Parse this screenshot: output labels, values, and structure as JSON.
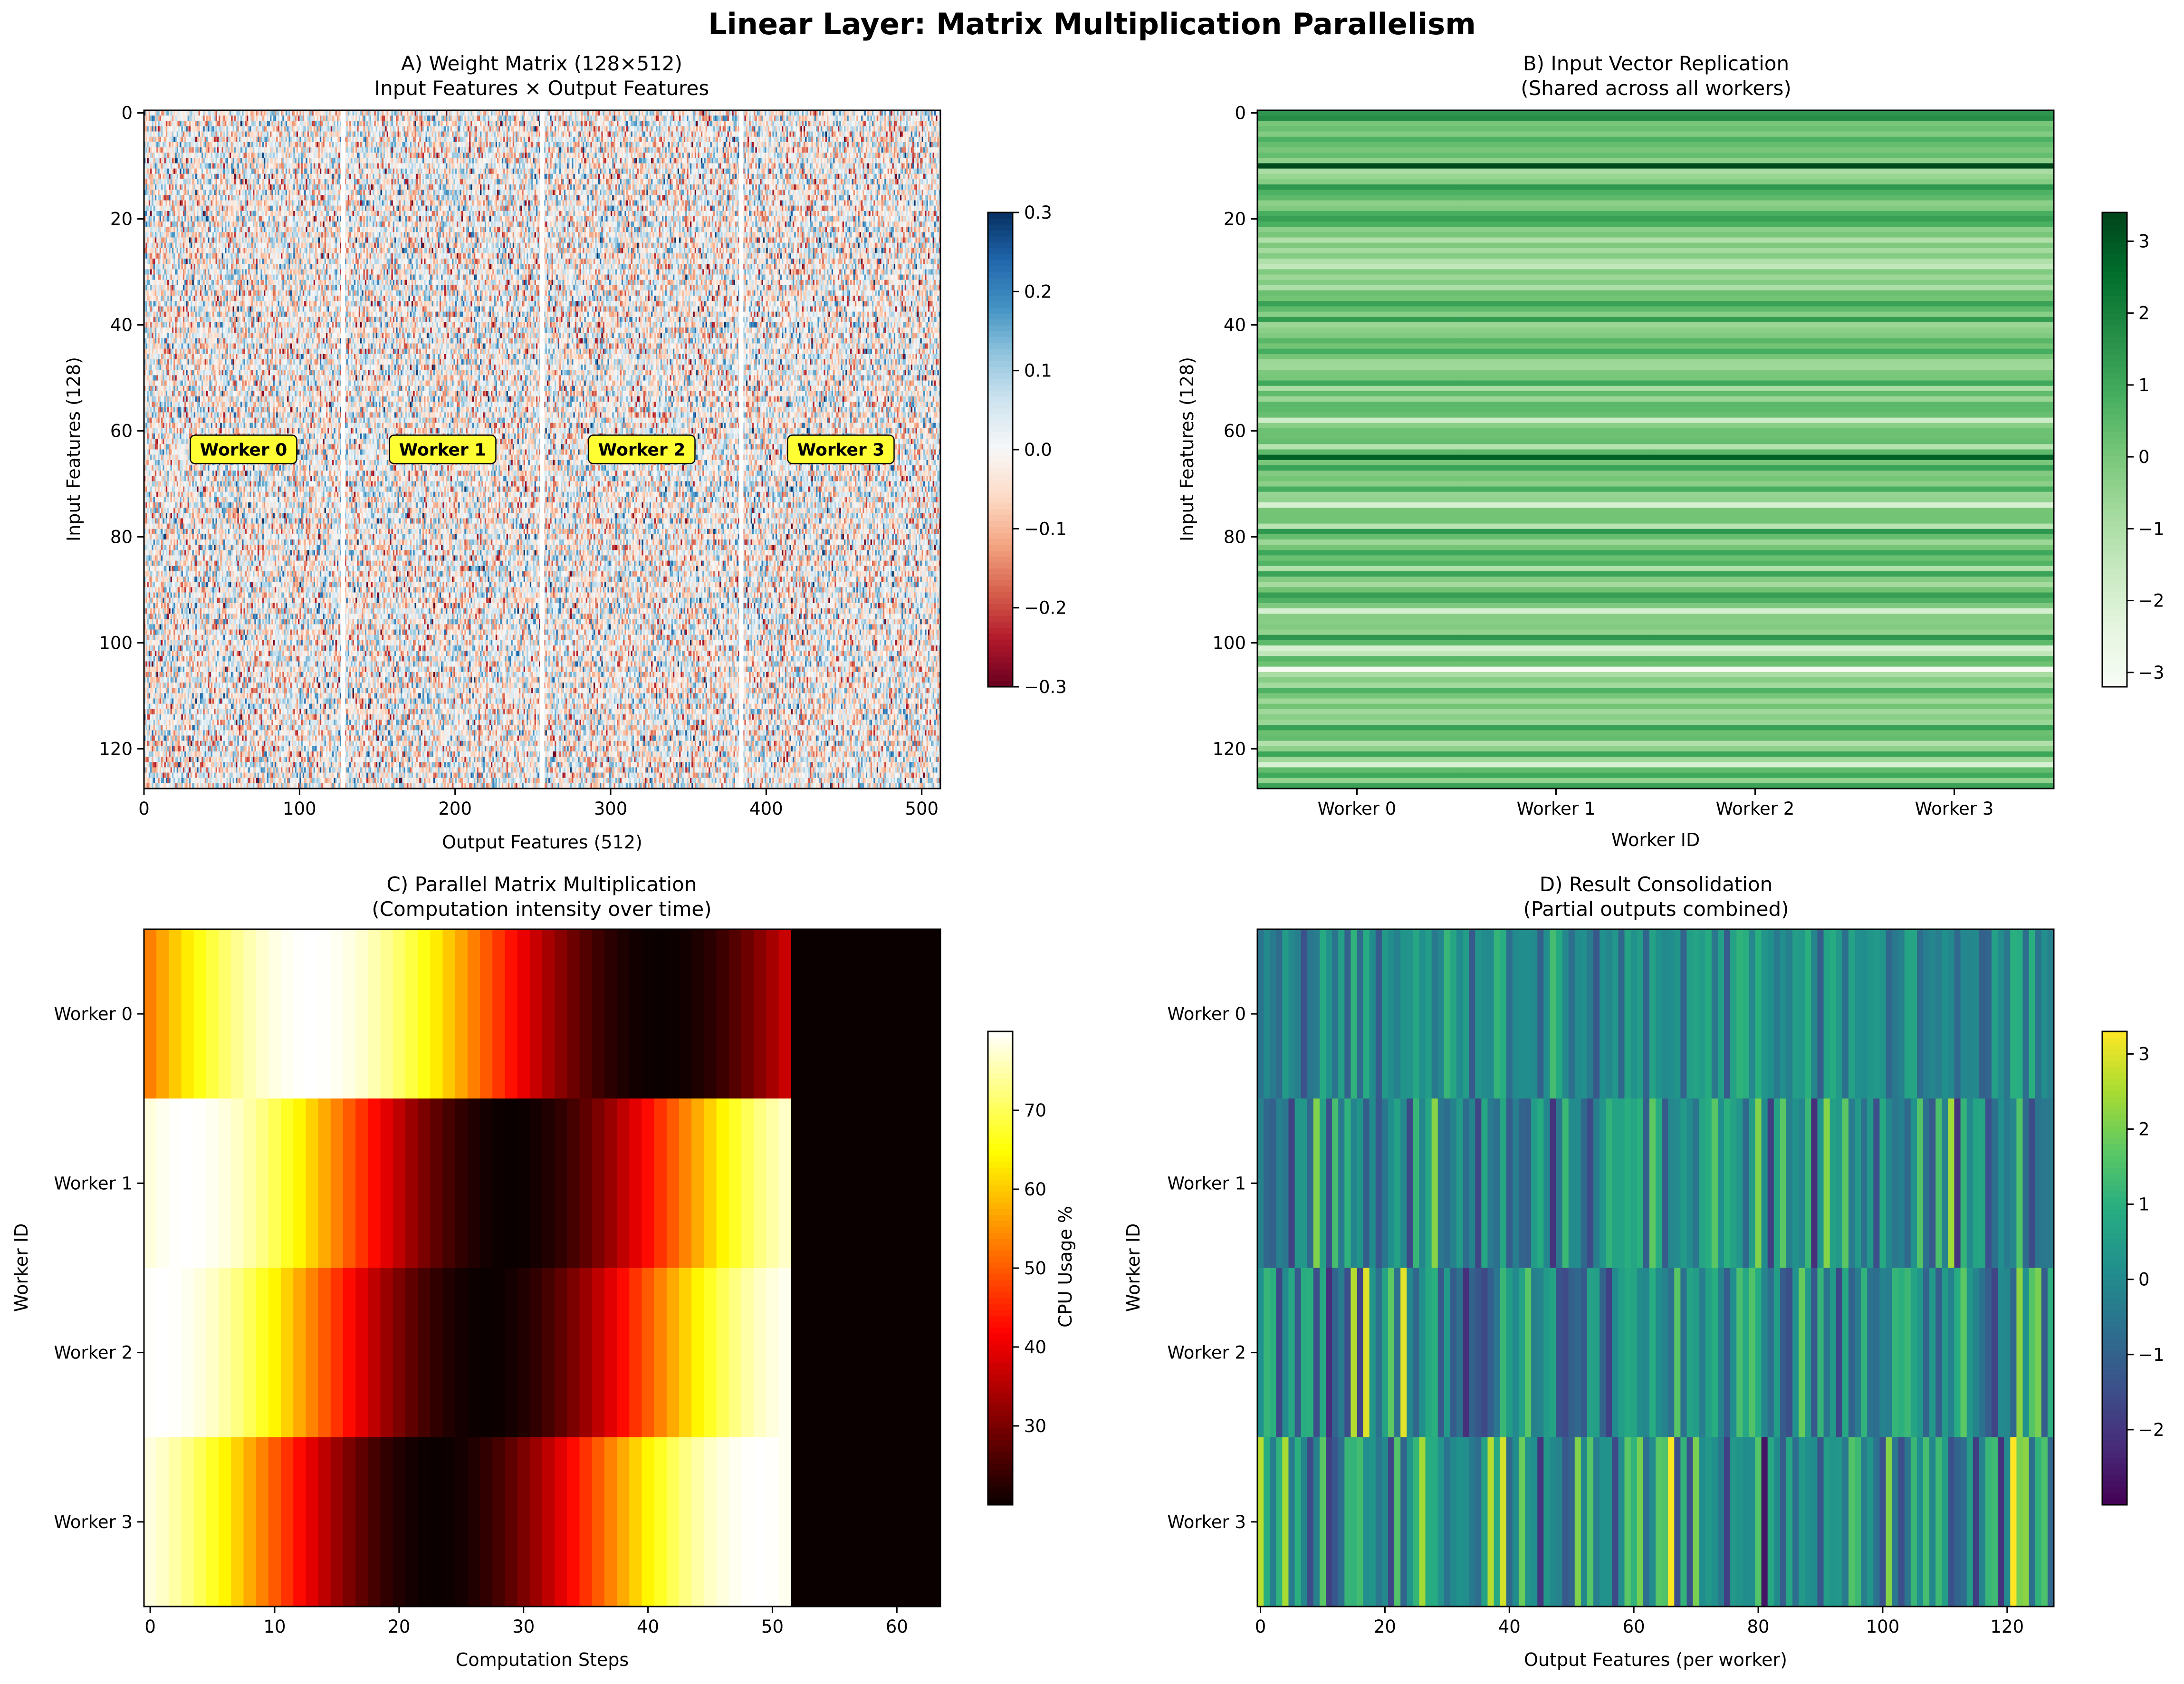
{
  "title": "Linear Layer: Matrix Multiplication Parallelism",
  "chart_data": [
    {
      "id": "A",
      "type": "heatmap",
      "title": "A) Weight Matrix (128×512)",
      "subtitle": "Input Features × Output Features",
      "xlabel": "Output Features (512)",
      "ylabel": "Input Features (128)",
      "shape": [
        128,
        512
      ],
      "xlim": [
        0,
        512
      ],
      "ylim": [
        128,
        0
      ],
      "xticks": [
        "0",
        "100",
        "200",
        "300",
        "400",
        "500"
      ],
      "yticks": [
        "0",
        "20",
        "40",
        "60",
        "80",
        "100",
        "120"
      ],
      "colormap": "RdBu",
      "value_range": [
        -0.3,
        0.3
      ],
      "colorbar_ticks": [
        "0.3",
        "0.2",
        "0.1",
        "0.0",
        "−0.1",
        "−0.2",
        "−0.3"
      ],
      "partition_lines_at": [
        128,
        256,
        384
      ],
      "annotations": [
        "Worker 0",
        "Worker 1",
        "Worker 2",
        "Worker 3"
      ],
      "annotation_color": "#ffff33"
    },
    {
      "id": "B",
      "type": "heatmap",
      "title": "B) Input Vector Replication",
      "subtitle": "(Shared across all workers)",
      "xlabel": "Worker ID",
      "ylabel": "Input Features (128)",
      "shape": [
        128,
        4
      ],
      "xticks": [
        "Worker 0",
        "Worker 1",
        "Worker 2",
        "Worker 3"
      ],
      "yticks": [
        "0",
        "20",
        "40",
        "60",
        "80",
        "100",
        "120"
      ],
      "colormap": "Greens",
      "value_range": [
        -3.2,
        3.4
      ],
      "colorbar_ticks": [
        "3",
        "2",
        "1",
        "0",
        "−1",
        "−2",
        "−3"
      ]
    },
    {
      "id": "C",
      "type": "heatmap",
      "title": "C) Parallel Matrix Multiplication",
      "subtitle": "(Computation intensity over time)",
      "xlabel": "Computation Steps",
      "ylabel": "Worker ID",
      "shape": [
        4,
        64
      ],
      "xticks": [
        "0",
        "10",
        "20",
        "30",
        "40",
        "50",
        "60"
      ],
      "yticks": [
        "Worker 0",
        "Worker 1",
        "Worker 2",
        "Worker 3"
      ],
      "colormap": "hot",
      "colorbar_label": "CPU Usage %",
      "value_range": [
        20,
        80
      ],
      "colorbar_ticks": [
        "70",
        "60",
        "50",
        "40",
        "30"
      ],
      "active_steps": [
        64,
        52,
        52,
        52
      ],
      "peak_step": [
        13,
        3,
        1,
        49
      ],
      "min_usage": 20,
      "max_usage": 80
    },
    {
      "id": "D",
      "type": "heatmap",
      "title": "D) Result Consolidation",
      "subtitle": "(Partial outputs combined)",
      "xlabel": "Output Features (per worker)",
      "ylabel": "Worker ID",
      "shape": [
        4,
        128
      ],
      "xticks": [
        "0",
        "20",
        "40",
        "60",
        "80",
        "100",
        "120"
      ],
      "yticks": [
        "Worker 0",
        "Worker 1",
        "Worker 2",
        "Worker 3"
      ],
      "colormap": "viridis",
      "value_range": [
        -3.0,
        3.3
      ],
      "colorbar_ticks": [
        "3",
        "2",
        "1",
        "0",
        "−1",
        "−2"
      ]
    }
  ]
}
